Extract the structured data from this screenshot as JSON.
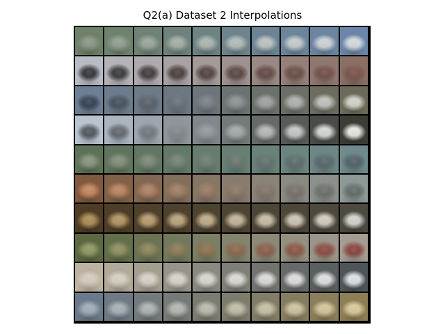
{
  "title": "Q2(a) Dataset 2 Interpolations",
  "grid": {
    "rows": 10,
    "cols": 10,
    "row_endpoints": [
      {
        "start": "#6f8168",
        "end": "#6b86a8",
        "start_obj": "#8a9a88",
        "end_obj": "#dfe4ea"
      },
      {
        "start": "#b8bcc4",
        "end": "#8a6f64",
        "start_obj": "#2b2e33",
        "end_obj": "#7a4f44"
      },
      {
        "start": "#6d7f95",
        "end": "#6c6a58",
        "start_obj": "#2e3a4c",
        "end_obj": "#d9dad1"
      },
      {
        "start": "#b9c4d0",
        "end": "#3c3e36",
        "start_obj": "#4c555c",
        "end_obj": "#f1f2ee"
      },
      {
        "start": "#5e7257",
        "end": "#6f8a8c",
        "start_obj": "#87957c",
        "end_obj": "#4d5f63"
      },
      {
        "start": "#7f5a3f",
        "end": "#8e9894",
        "start_obj": "#c9875b",
        "end_obj": "#5e6a6a"
      },
      {
        "start": "#4e3d24",
        "end": "#4d4a40",
        "start_obj": "#b08b50",
        "end_obj": "#dedcd4"
      },
      {
        "start": "#5b6841",
        "end": "#a49b92",
        "start_obj": "#8e9a5e",
        "end_obj": "#8b3c35"
      },
      {
        "start": "#bdb3a1",
        "end": "#4e5558",
        "start_obj": "#e0d6c6",
        "end_obj": "#e9edf1"
      },
      {
        "start": "#6b7a8a",
        "end": "#8e7e55",
        "start_obj": "#a5b2c0",
        "end_obj": "#e3d29c"
      }
    ]
  }
}
